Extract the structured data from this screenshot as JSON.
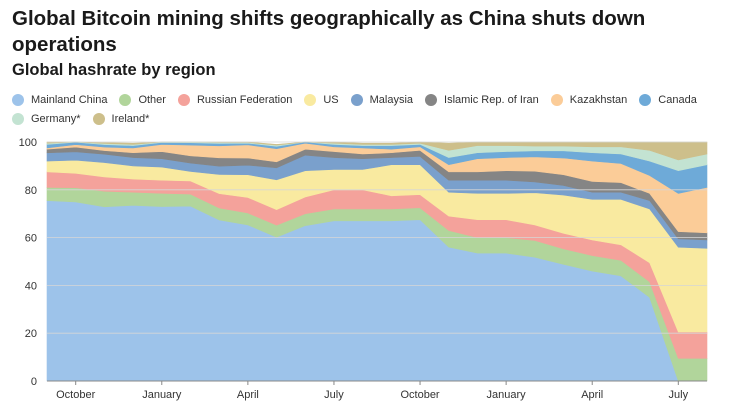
{
  "header": {
    "title": "Global Bitcoin mining shifts geographically as China shuts down operations",
    "subtitle": "Global hashrate by region"
  },
  "chart_data": {
    "type": "area",
    "stacked": true,
    "title": "Global Bitcoin mining shifts geographically as China shuts down operations",
    "subtitle": "Global hashrate by region",
    "xlabel": "",
    "ylabel": "",
    "ylim": [
      0,
      100
    ],
    "yticks": [
      0,
      20,
      40,
      60,
      80,
      100
    ],
    "grid": true,
    "legend_position": "top",
    "x_tick_labels": [
      "October",
      "January",
      "April",
      "July",
      "October",
      "January",
      "April",
      "July"
    ],
    "x_tick_indices": [
      1,
      4,
      7,
      10,
      13,
      16,
      19,
      22
    ],
    "x": [
      "2019-09",
      "2019-10",
      "2019-11",
      "2019-12",
      "2020-01",
      "2020-02",
      "2020-03",
      "2020-04",
      "2020-05",
      "2020-06",
      "2020-07",
      "2020-08",
      "2020-09",
      "2020-10",
      "2020-11",
      "2020-12",
      "2021-01",
      "2021-02",
      "2021-03",
      "2021-04",
      "2021-05",
      "2021-06",
      "2021-07",
      "2021-08"
    ],
    "series": [
      {
        "name": "Mainland China",
        "color": "#9dc3ea",
        "values": [
          75.5,
          74.9,
          72.9,
          73.5,
          73.0,
          73.2,
          67.4,
          65.3,
          60.2,
          65.0,
          67.0,
          67.0,
          67.0,
          67.5,
          56.0,
          53.5,
          53.5,
          51.8,
          48.8,
          46.0,
          44.0,
          35.0,
          0.0,
          0.0
        ]
      },
      {
        "name": "Other",
        "color": "#b1d59b",
        "values": [
          5.5,
          6.0,
          6.5,
          5.5,
          5.5,
          5.0,
          5.0,
          5.0,
          5.0,
          5.0,
          5.0,
          5.0,
          5.0,
          5.0,
          7.0,
          6.5,
          6.5,
          7.0,
          6.5,
          6.5,
          6.5,
          6.5,
          9.5,
          9.5
        ]
      },
      {
        "name": "Russian Federation",
        "color": "#f4a29b",
        "values": [
          6.5,
          6.0,
          6.0,
          5.5,
          5.5,
          5.5,
          6.0,
          6.5,
          6.5,
          7.0,
          8.0,
          8.0,
          5.5,
          5.5,
          6.0,
          7.5,
          7.5,
          6.5,
          6.5,
          6.5,
          6.5,
          8.0,
          11.0,
          11.0
        ]
      },
      {
        "name": "US",
        "color": "#f9eaa0",
        "values": [
          4.5,
          5.5,
          6.0,
          5.5,
          5.5,
          4.0,
          8.0,
          9.5,
          12.5,
          11.0,
          8.5,
          8.5,
          13.0,
          12.5,
          10.0,
          11.0,
          11.0,
          13.5,
          16.0,
          17.0,
          19.0,
          22.5,
          35.5,
          35.0
        ]
      },
      {
        "name": "Malaysia",
        "color": "#7aa0cc",
        "values": [
          3.5,
          3.5,
          3.5,
          3.5,
          3.5,
          3.5,
          3.5,
          4.0,
          5.0,
          6.5,
          5.0,
          4.5,
          3.0,
          3.5,
          5.0,
          5.5,
          5.5,
          4.5,
          4.0,
          3.0,
          3.0,
          3.5,
          3.5,
          3.5
        ]
      },
      {
        "name": "Islamic Rep. of Iran",
        "color": "#858585",
        "values": [
          1.5,
          2.0,
          1.5,
          2.0,
          3.0,
          3.0,
          3.5,
          3.0,
          2.5,
          2.5,
          2.5,
          2.0,
          2.0,
          2.5,
          3.5,
          3.5,
          4.0,
          4.5,
          4.5,
          4.5,
          4.0,
          3.0,
          3.0,
          3.0
        ]
      },
      {
        "name": "Kazakhstan",
        "color": "#fbcc98",
        "values": [
          0.5,
          1.0,
          1.5,
          2.0,
          3.0,
          4.5,
          5.0,
          5.5,
          5.5,
          2.5,
          2.0,
          2.5,
          1.5,
          1.5,
          3.0,
          5.5,
          5.5,
          6.0,
          7.0,
          8.5,
          8.0,
          7.5,
          16.0,
          19.0
        ]
      },
      {
        "name": "Canada",
        "color": "#6eaad8",
        "values": [
          1.5,
          1.0,
          1.0,
          1.0,
          0.8,
          1.0,
          1.0,
          0.7,
          1.0,
          0.8,
          1.0,
          1.0,
          1.5,
          1.0,
          3.0,
          2.5,
          2.5,
          2.5,
          3.0,
          3.5,
          4.0,
          6.0,
          9.5,
          9.5
        ]
      },
      {
        "name": "Germany*",
        "color": "#c3e3d2",
        "values": [
          0.5,
          0.5,
          0.5,
          0.5,
          0.4,
          0.5,
          0.4,
          0.3,
          0.5,
          0.5,
          0.5,
          0.5,
          0.5,
          0.5,
          3.0,
          3.0,
          2.5,
          2.0,
          2.0,
          2.5,
          3.0,
          4.5,
          4.5,
          4.5
        ]
      },
      {
        "name": "Ireland*",
        "color": "#cdbf8b",
        "values": [
          0.5,
          0.3,
          0.3,
          0.5,
          0.3,
          0.3,
          0.2,
          0.2,
          0.3,
          0.2,
          0.5,
          0.5,
          0.5,
          0.5,
          3.0,
          1.5,
          1.5,
          1.7,
          1.7,
          2.0,
          2.0,
          3.5,
          7.5,
          5.0
        ]
      }
    ]
  }
}
